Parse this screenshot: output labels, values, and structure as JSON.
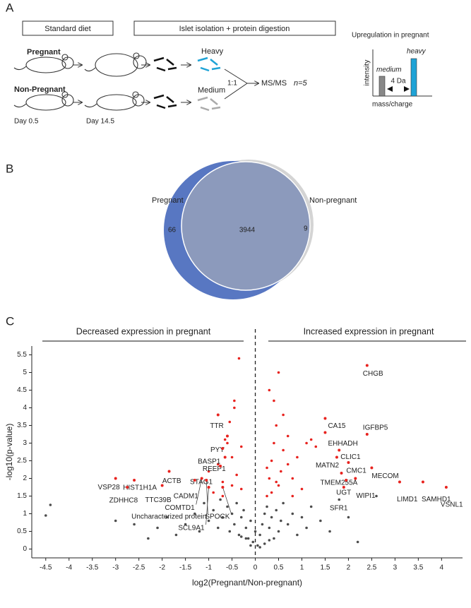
{
  "panel_a": {
    "label": "A",
    "standard_diet": "Standard diet",
    "islet_isolation": "Islet isolation + protein digestion",
    "pregnant": "Pregnant",
    "non_pregnant": "Non-Pregnant",
    "day_start": "Day 0.5",
    "day_end": "Day 14.5",
    "heavy": "Heavy",
    "medium": "Medium",
    "ratio": "1:1",
    "ms": "MS/MS",
    "n": "n=5",
    "inset": {
      "title": "Upregulation in pregnant",
      "y_label": "intensity",
      "x_label": "mass/charge",
      "medium": "medium",
      "heavy": "heavy",
      "shift": "4 Da"
    }
  },
  "panel_b": {
    "label": "B",
    "left_name": "Pregnant",
    "right_name": "Non-pregnant",
    "left_only": "66",
    "overlap": "3944",
    "right_only": "9"
  },
  "panel_c": {
    "label": "C",
    "left_header": "Decreased expression in pregnant",
    "right_header": "Increased expression in pregnant"
  },
  "chart_data": {
    "type": "scatter",
    "x_label": "log2(Pregnant/Non-pregnant)",
    "y_label": "-log10(p-value)",
    "xlim": [
      -4.8,
      4.45
    ],
    "ylim": [
      -0.25,
      5.75
    ],
    "xticks": [
      -4.5,
      -4,
      -3.5,
      -3,
      -2.5,
      -2,
      -1.5,
      -1,
      -0.5,
      0,
      0.5,
      1,
      1.5,
      2,
      2.5,
      3,
      3.5,
      4
    ],
    "yticks": [
      0,
      0.5,
      1,
      1.5,
      2,
      2.5,
      3,
      3.5,
      4,
      4.5,
      5,
      5.5
    ],
    "series": [
      {
        "color": "#4d4d4d",
        "x": [
          -4.5,
          -4.4,
          -3.0,
          -2.6,
          -2.3,
          -2.1,
          -1.9,
          -1.7,
          -1.5,
          -1.3,
          -1.2,
          -1.1,
          -1.0,
          -0.9,
          -0.8,
          -0.75,
          -0.7,
          -0.6,
          -0.55,
          -0.5,
          -0.45,
          -0.4,
          -0.35,
          -0.3,
          -0.25,
          -0.2,
          -0.15,
          -0.1,
          -0.05,
          0.0,
          0.05,
          0.1,
          0.15,
          0.2,
          0.25,
          0.3,
          0.35,
          0.4,
          0.45,
          0.5,
          0.55,
          0.6,
          0.7,
          0.8,
          0.9,
          1.0,
          1.1,
          1.2,
          1.4,
          1.6,
          1.8,
          2.0,
          2.2,
          2.6,
          0.1,
          -0.1,
          0.2,
          -0.2,
          0.3,
          -0.3
        ],
        "values": [
          0.95,
          1.25,
          0.8,
          0.7,
          0.3,
          0.6,
          0.9,
          0.4,
          0.7,
          1.0,
          0.5,
          1.3,
          0.8,
          1.1,
          0.6,
          1.4,
          0.9,
          1.2,
          0.5,
          1.0,
          0.7,
          1.3,
          0.4,
          0.9,
          1.1,
          0.6,
          0.3,
          0.8,
          0.2,
          0.5,
          0.1,
          0.4,
          0.7,
          1.0,
          1.2,
          0.6,
          0.9,
          0.3,
          1.1,
          0.5,
          0.8,
          1.3,
          0.7,
          1.0,
          0.4,
          0.9,
          0.6,
          1.2,
          0.8,
          0.5,
          1.4,
          0.9,
          0.2,
          1.5,
          0.05,
          0.1,
          0.15,
          0.3,
          0.25,
          0.35
        ]
      },
      {
        "color": "#e8231f",
        "x": [
          0.25,
          0.3,
          0.35,
          0.4,
          0.45,
          0.5,
          0.55,
          0.6,
          0.7,
          0.8,
          0.9,
          1.0,
          1.1,
          1.3,
          0.3,
          0.4,
          0.5,
          0.6,
          0.7,
          0.35,
          0.45,
          0.25,
          0.8,
          1.2,
          -0.3,
          -0.4,
          -0.5,
          -0.6,
          -0.7,
          -0.8,
          -0.9,
          -0.35,
          -0.45,
          -0.55,
          -0.65,
          -0.5,
          -0.3,
          -1.0,
          -0.45,
          -0.7
        ],
        "values": [
          1.5,
          2.0,
          2.5,
          3.0,
          3.5,
          1.8,
          2.2,
          2.8,
          3.2,
          2.0,
          2.6,
          1.7,
          3.0,
          2.9,
          4.5,
          4.2,
          5.0,
          3.8,
          2.4,
          1.6,
          1.9,
          2.3,
          1.5,
          3.1,
          1.7,
          2.1,
          2.6,
          3.0,
          1.9,
          2.4,
          1.6,
          5.4,
          4.2,
          3.6,
          3.1,
          1.8,
          2.9,
          2.2,
          4.0,
          1.5
        ]
      }
    ],
    "annotation_color": "#e8231f",
    "annotations": [
      {
        "text": "CHGB",
        "x": 2.4,
        "y": 5.2
      },
      {
        "text": "CA15",
        "x": 1.5,
        "y": 3.7
      },
      {
        "text": "IGFBP5",
        "x": 2.4,
        "y": 3.25
      },
      {
        "text": "EHHADH",
        "x": 1.5,
        "y": 3.3
      },
      {
        "text": "CLIC1",
        "x": 1.8,
        "y": 2.8
      },
      {
        "text": "MATN2",
        "x": 1.75,
        "y": 2.6
      },
      {
        "text": "CMC1",
        "x": 2.0,
        "y": 2.45
      },
      {
        "text": "MECOM",
        "x": 2.5,
        "y": 2.3
      },
      {
        "text": "TMEM255A",
        "x": 1.85,
        "y": 2.15
      },
      {
        "text": "UGT",
        "x": 1.95,
        "y": 1.95
      },
      {
        "text": "WIPI1",
        "x": 2.15,
        "y": 2.0
      },
      {
        "text": "SFR1",
        "x": 1.9,
        "y": 1.75
      },
      {
        "text": "LIMD1",
        "x": 3.1,
        "y": 1.9
      },
      {
        "text": "SAMHD1",
        "x": 3.6,
        "y": 1.9
      },
      {
        "text": "VSNL1",
        "x": 4.1,
        "y": 1.75
      },
      {
        "text": "TTR",
        "x": -0.8,
        "y": 3.8
      },
      {
        "text": "PYY",
        "x": -0.6,
        "y": 3.2
      },
      {
        "text": "BASP1",
        "x": -0.7,
        "y": 2.85
      },
      {
        "text": "REEP1",
        "x": -0.65,
        "y": 2.6
      },
      {
        "text": "STAG1",
        "x": -0.75,
        "y": 2.35
      },
      {
        "text": "ACTB",
        "x": -1.85,
        "y": 2.2
      },
      {
        "text": "CADM1",
        "x": -1.3,
        "y": 1.95
      },
      {
        "text": "VSP28",
        "x": -3.0,
        "y": 2.0
      },
      {
        "text": "HIST1H1A",
        "x": -2.6,
        "y": 1.95
      },
      {
        "text": "ZDHHC8",
        "x": -2.75,
        "y": 1.75
      },
      {
        "text": "TTC39B",
        "x": -2.0,
        "y": 1.8
      },
      {
        "text": "COMTD1",
        "x": -1.15,
        "y": 2.0
      },
      {
        "text": "Uncharacterized protein",
        "x": -1.05,
        "y": 1.95
      },
      {
        "text": "SPOCK",
        "x": -0.7,
        "y": 1.75
      },
      {
        "text": "SCL9A1",
        "x": -1.0,
        "y": 1.75
      }
    ]
  }
}
